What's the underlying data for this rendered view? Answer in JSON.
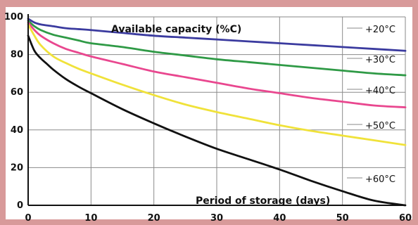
{
  "chart_data": {
    "type": "line",
    "title": "",
    "xlabel": "",
    "ylabel": "",
    "xlim": [
      0,
      60
    ],
    "ylim": [
      0,
      100
    ],
    "x_ticks": [
      0,
      10,
      20,
      30,
      40,
      50,
      60
    ],
    "y_ticks": [
      0,
      20,
      40,
      60,
      80,
      100
    ],
    "grid": true,
    "annotations": [
      "Available capacity (%C)",
      "Period of storage (days)"
    ],
    "colors": {
      "background": "#d89a9a",
      "plot_background": "#ffffff",
      "grid": "#8a8a8a"
    },
    "series": [
      {
        "name": "+20°C",
        "color": "#3b3b9f",
        "x": [
          0,
          1,
          2,
          4,
          6,
          8,
          10,
          15,
          20,
          25,
          30,
          35,
          40,
          45,
          50,
          55,
          60
        ],
        "y": [
          99,
          97,
          96,
          95,
          94,
          93.5,
          93,
          91.5,
          90,
          89,
          88,
          87,
          86,
          85,
          84,
          83,
          82
        ]
      },
      {
        "name": "+30°C",
        "color": "#2f9a46",
        "x": [
          0,
          1,
          2,
          4,
          6,
          8,
          10,
          15,
          20,
          25,
          30,
          35,
          40,
          45,
          50,
          55,
          60
        ],
        "y": [
          98,
          95,
          93,
          90.5,
          89,
          87.5,
          86,
          84,
          81.5,
          79.5,
          77.5,
          76,
          74.5,
          73,
          71.5,
          70,
          69
        ]
      },
      {
        "name": "+40°C",
        "color": "#e9478f",
        "x": [
          0,
          1,
          2,
          4,
          6,
          8,
          10,
          15,
          20,
          25,
          30,
          35,
          40,
          45,
          50,
          55,
          60
        ],
        "y": [
          97,
          93,
          90,
          86,
          83,
          81,
          79,
          75,
          71,
          68,
          65,
          62,
          59.5,
          57,
          55,
          53,
          52
        ]
      },
      {
        "name": "+50°C",
        "color": "#f0e23a",
        "x": [
          0,
          1,
          2,
          4,
          6,
          8,
          10,
          15,
          20,
          25,
          30,
          35,
          40,
          45,
          50,
          55,
          60
        ],
        "y": [
          96,
          90,
          85,
          79,
          75.5,
          72.5,
          70,
          64,
          58.5,
          53.5,
          49.5,
          46,
          42.5,
          39.5,
          37,
          34.5,
          32
        ]
      },
      {
        "name": "+60°C",
        "color": "#111111",
        "x": [
          0,
          1,
          2,
          3,
          4,
          6,
          8,
          10,
          15,
          20,
          25,
          30,
          35,
          40,
          45,
          50,
          55,
          60
        ],
        "y": [
          90,
          82,
          78,
          75,
          72,
          67,
          63,
          59.5,
          51,
          43.5,
          36.5,
          30,
          24.5,
          19,
          13,
          7.5,
          2.5,
          0
        ]
      }
    ]
  }
}
